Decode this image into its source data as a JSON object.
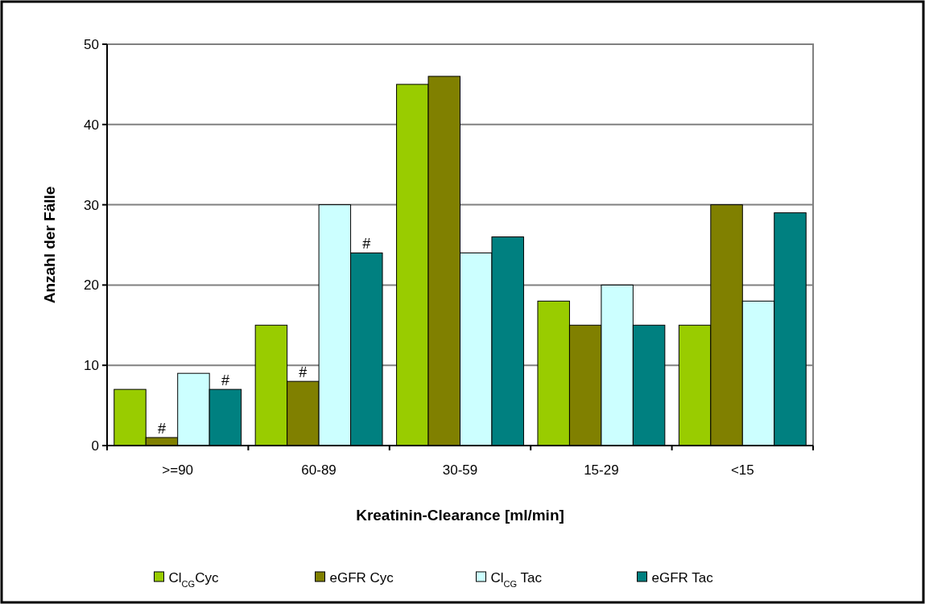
{
  "chart_data": {
    "type": "bar",
    "xlabel": "Kreatinin-Clearance [ml/min]",
    "ylabel": "Anzahl der Fälle",
    "categories": [
      ">=90",
      "60-89",
      "30-59",
      "15-29",
      "<15"
    ],
    "series": [
      {
        "name": "Cl$_{CG}$Cyc",
        "color": "#99cc00",
        "values": [
          7,
          15,
          45,
          18,
          15
        ]
      },
      {
        "name": "eGFR Cyc",
        "color": "#808000",
        "values": [
          1,
          8,
          46,
          15,
          30
        ],
        "value_labels": [
          "#",
          "#",
          null,
          null,
          null
        ]
      },
      {
        "name": "Cl$_{CG}$ Tac",
        "color": "#ccffff",
        "values": [
          9,
          30,
          24,
          20,
          18
        ]
      },
      {
        "name": "eGFR Tac",
        "color": "#008080",
        "values": [
          7,
          24,
          26,
          15,
          29
        ],
        "value_labels": [
          "#",
          "#",
          null,
          null,
          null
        ]
      }
    ],
    "ylim": [
      0,
      50
    ],
    "yticks": [
      0,
      10,
      20,
      30,
      40,
      50
    ],
    "grid": "y",
    "legend": "bottom"
  }
}
